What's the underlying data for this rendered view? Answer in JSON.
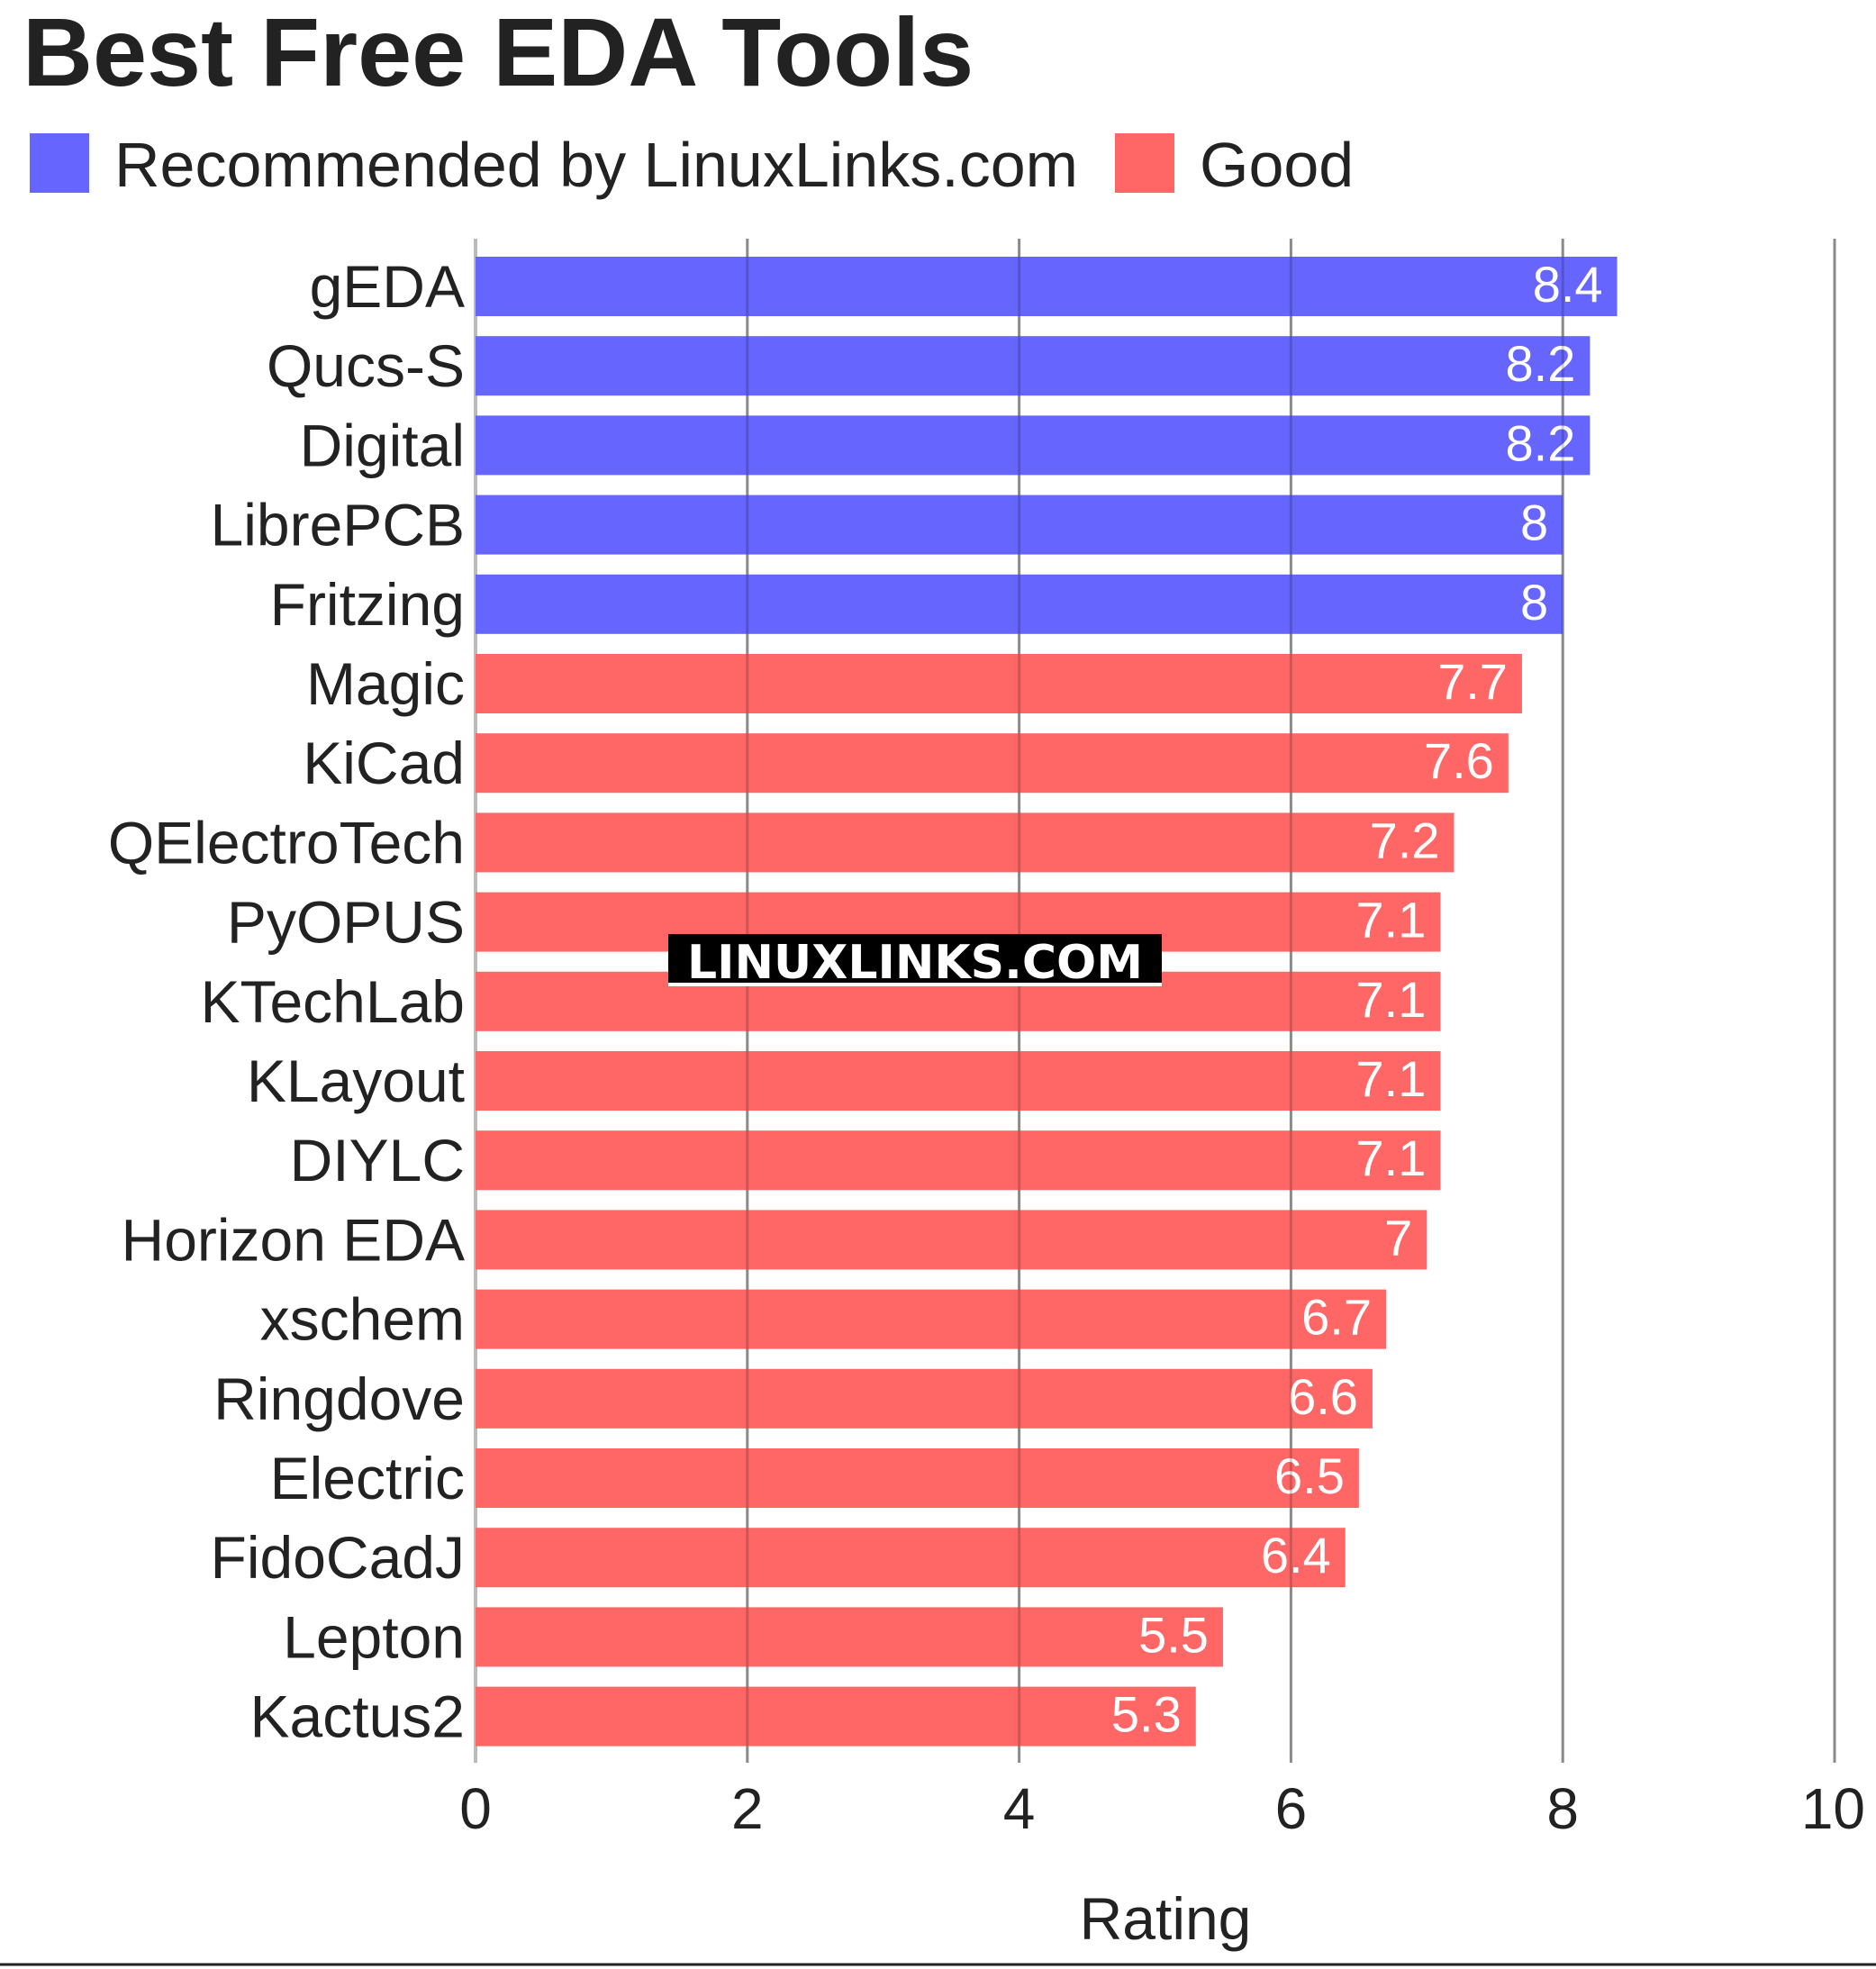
{
  "chart_data": {
    "type": "bar",
    "orientation": "horizontal",
    "title": "Best Free EDA Tools",
    "xlabel": "Rating",
    "ylabel": "",
    "xlim": [
      0,
      10
    ],
    "ticks": [
      0,
      2,
      4,
      6,
      8,
      10
    ],
    "grid": true,
    "legend_position": "top-left",
    "legend": [
      {
        "label": "Recommended by LinuxLinks.com",
        "color": "#6666ff"
      },
      {
        "label": "Good",
        "color": "#ff6666"
      }
    ],
    "categories": [
      "gEDA",
      "Qucs-S",
      "Digital",
      "LibrePCB",
      "Fritzing",
      "Magic",
      "KiCad",
      "QElectroTech",
      "PyOPUS",
      "KTechLab",
      "KLayout",
      "DIYLC",
      "Horizon EDA",
      "xschem",
      "Ringdove",
      "Electric",
      "FidoCadJ",
      "Lepton",
      "Kactus2"
    ],
    "values": [
      8.4,
      8.2,
      8.2,
      8,
      8,
      7.7,
      7.6,
      7.2,
      7.1,
      7.1,
      7.1,
      7.1,
      7,
      6.7,
      6.6,
      6.5,
      6.4,
      5.5,
      5.3
    ],
    "groups": [
      "Recommended by LinuxLinks.com",
      "Recommended by LinuxLinks.com",
      "Recommended by LinuxLinks.com",
      "Recommended by LinuxLinks.com",
      "Recommended by LinuxLinks.com",
      "Good",
      "Good",
      "Good",
      "Good",
      "Good",
      "Good",
      "Good",
      "Good",
      "Good",
      "Good",
      "Good",
      "Good",
      "Good",
      "Good"
    ],
    "watermark": "LINUXLINKS.COM"
  }
}
